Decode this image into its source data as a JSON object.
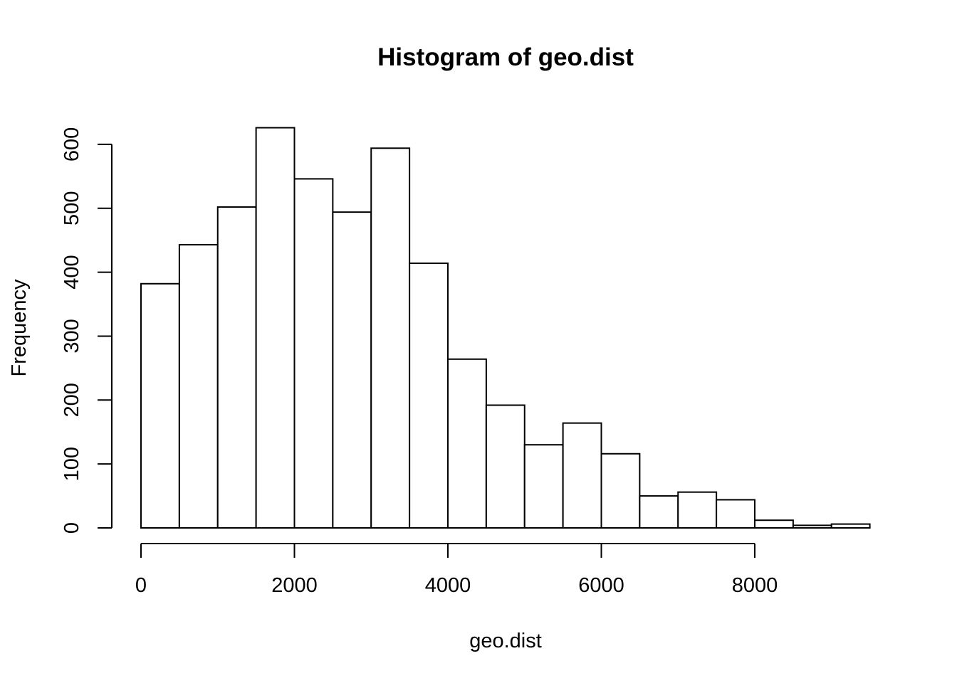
{
  "chart_data": {
    "type": "bar",
    "title": "Histogram of geo.dist",
    "xlabel": "geo.dist",
    "ylabel": "Frequency",
    "bin_width": 500,
    "bins": [
      {
        "start": 0,
        "end": 500,
        "count": 382
      },
      {
        "start": 500,
        "end": 1000,
        "count": 443
      },
      {
        "start": 1000,
        "end": 1500,
        "count": 502
      },
      {
        "start": 1500,
        "end": 2000,
        "count": 626
      },
      {
        "start": 2000,
        "end": 2500,
        "count": 546
      },
      {
        "start": 2500,
        "end": 3000,
        "count": 494
      },
      {
        "start": 3000,
        "end": 3500,
        "count": 594
      },
      {
        "start": 3500,
        "end": 4000,
        "count": 414
      },
      {
        "start": 4000,
        "end": 4500,
        "count": 264
      },
      {
        "start": 4500,
        "end": 5000,
        "count": 192
      },
      {
        "start": 5000,
        "end": 5500,
        "count": 130
      },
      {
        "start": 5500,
        "end": 6000,
        "count": 164
      },
      {
        "start": 6000,
        "end": 6500,
        "count": 116
      },
      {
        "start": 6500,
        "end": 7000,
        "count": 50
      },
      {
        "start": 7000,
        "end": 7500,
        "count": 56
      },
      {
        "start": 7500,
        "end": 8000,
        "count": 44
      },
      {
        "start": 8000,
        "end": 8500,
        "count": 12
      },
      {
        "start": 8500,
        "end": 9000,
        "count": 4
      },
      {
        "start": 9000,
        "end": 9500,
        "count": 6
      }
    ],
    "xlim": [
      0,
      9500
    ],
    "ylim": [
      0,
      626
    ],
    "x_ticks": [
      0,
      2000,
      4000,
      6000,
      8000
    ],
    "x_tick_labels": [
      "0",
      "2000",
      "4000",
      "6000",
      "8000"
    ],
    "y_ticks": [
      0,
      100,
      200,
      300,
      400,
      500,
      600
    ],
    "y_tick_labels": [
      "0",
      "100",
      "200",
      "300",
      "400",
      "500",
      "600"
    ],
    "grid": false,
    "colors": {
      "bar_fill": "#ffffff",
      "bar_stroke": "#000000"
    }
  }
}
